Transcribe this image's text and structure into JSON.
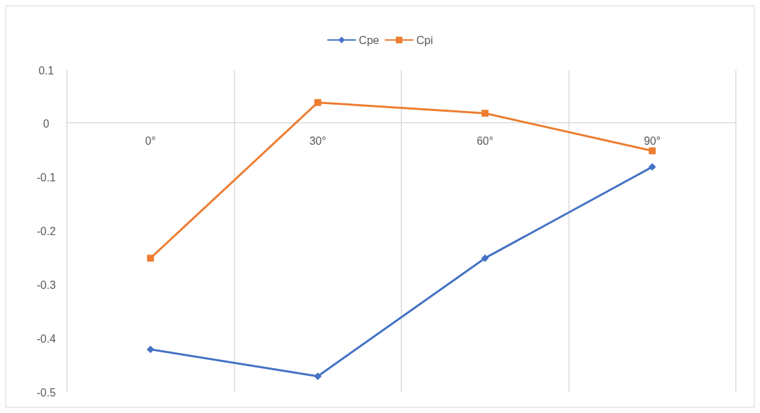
{
  "chart_data": {
    "type": "line",
    "categories": [
      "0°",
      "30°",
      "60°",
      "90°"
    ],
    "series": [
      {
        "name": "Cpe",
        "color": "#4472c4",
        "marker": "diamond",
        "values": [
          -0.42,
          -0.47,
          -0.25,
          -0.08
        ]
      },
      {
        "name": "Cpi",
        "color": "#ed7d31",
        "marker": "square",
        "values": [
          -0.25,
          0.04,
          0.02,
          -0.05
        ]
      }
    ],
    "ylim": [
      -0.5,
      0.1
    ],
    "yticks": [
      -0.5,
      -0.4,
      -0.3,
      -0.2,
      -0.1,
      0,
      0.1
    ],
    "grid": "x",
    "legend": "top",
    "line_style": "solid"
  }
}
